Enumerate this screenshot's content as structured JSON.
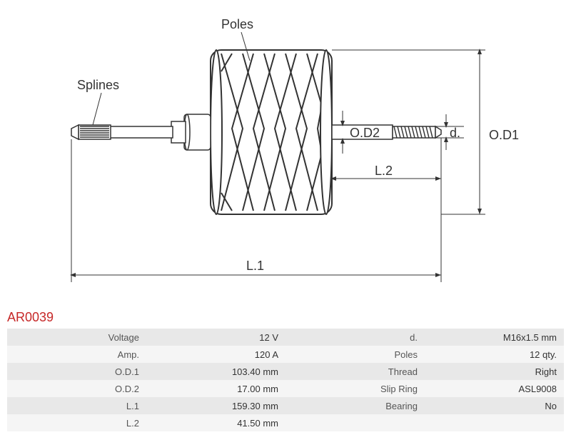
{
  "part_number": "AR0039",
  "diagram": {
    "type": "technical-drawing",
    "labels": {
      "poles": "Poles",
      "splines": "Splines",
      "od1": "O.D1",
      "od2": "O.D2",
      "d": "d.",
      "l1": "L.1",
      "l2": "L.2"
    },
    "stroke_color": "#333333",
    "stroke_width": 1.5,
    "background": "#ffffff",
    "label_fontsize": 18,
    "label_color": "#333333"
  },
  "specs": [
    {
      "label1": "Voltage",
      "value1": "12 V",
      "label2": "d.",
      "value2": "M16x1.5 mm"
    },
    {
      "label1": "Amp.",
      "value1": "120 A",
      "label2": "Poles",
      "value2": "12 qty."
    },
    {
      "label1": "O.D.1",
      "value1": "103.40 mm",
      "label2": "Thread",
      "value2": "Right"
    },
    {
      "label1": "O.D.2",
      "value1": "17.00 mm",
      "label2": "Slip Ring",
      "value2": "ASL9008"
    },
    {
      "label1": "L.1",
      "value1": "159.30 mm",
      "label2": "Bearing",
      "value2": "No"
    },
    {
      "label1": "L.2",
      "value1": "41.50 mm",
      "label2": "",
      "value2": ""
    }
  ],
  "table_style": {
    "odd_row_bg": "#e8e8e8",
    "even_row_bg": "#f5f5f5",
    "label_color": "#555555",
    "value_color": "#333333",
    "fontsize": 13
  }
}
